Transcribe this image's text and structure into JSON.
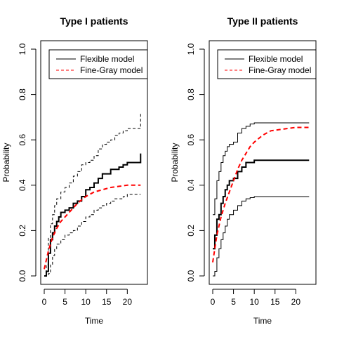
{
  "chart_data": [
    {
      "type": "line",
      "title": "Type I patients",
      "xlabel": "Time",
      "ylabel": "Probability",
      "xlim": [
        0,
        24
      ],
      "ylim": [
        0,
        1
      ],
      "xticks": [
        0,
        5,
        10,
        15,
        20
      ],
      "yticks": [
        0.0,
        0.2,
        0.4,
        0.6,
        0.8,
        1.0
      ],
      "xtick_labels": [
        "0",
        "5",
        "10",
        "15",
        "20"
      ],
      "ytick_labels": [
        "0.0",
        "0.2",
        "0.4",
        "0.6",
        "0.8",
        "1.0"
      ],
      "legend": {
        "position": "top",
        "entries": [
          {
            "label": "Flexible model",
            "color": "#000000",
            "style": "solid"
          },
          {
            "label": "Fine-Gray model",
            "color": "#ff0000",
            "style": "dashed"
          }
        ]
      },
      "series": [
        {
          "key": "flexible",
          "color": "#000000",
          "style": "step",
          "dash": "solid",
          "width": 2,
          "points": [
            [
              0,
              0
            ],
            [
              0.5,
              0.02
            ],
            [
              1,
              0.1
            ],
            [
              1.5,
              0.16
            ],
            [
              2,
              0.19
            ],
            [
              2.5,
              0.22
            ],
            [
              3,
              0.24
            ],
            [
              3.5,
              0.26
            ],
            [
              4,
              0.28
            ],
            [
              5,
              0.29
            ],
            [
              6,
              0.3
            ],
            [
              7,
              0.32
            ],
            [
              8,
              0.33
            ],
            [
              9,
              0.35
            ],
            [
              10,
              0.38
            ],
            [
              11,
              0.39
            ],
            [
              12,
              0.41
            ],
            [
              13,
              0.43
            ],
            [
              14,
              0.45
            ],
            [
              15,
              0.45
            ],
            [
              16,
              0.47
            ],
            [
              17,
              0.47
            ],
            [
              18,
              0.48
            ],
            [
              19,
              0.49
            ],
            [
              20,
              0.5
            ],
            [
              21,
              0.5
            ],
            [
              23.2,
              0.5
            ],
            [
              23.2,
              0.54
            ]
          ]
        },
        {
          "key": "flexible-upper",
          "color": "#000000",
          "style": "step",
          "dash": "dashed",
          "width": 1,
          "points": [
            [
              0,
              0
            ],
            [
              0.5,
              0.05
            ],
            [
              1,
              0.17
            ],
            [
              1.5,
              0.23
            ],
            [
              2,
              0.27
            ],
            [
              2.5,
              0.31
            ],
            [
              3,
              0.34
            ],
            [
              4,
              0.37
            ],
            [
              5,
              0.39
            ],
            [
              6,
              0.41
            ],
            [
              7,
              0.44
            ],
            [
              8,
              0.46
            ],
            [
              9,
              0.49
            ],
            [
              10,
              0.5
            ],
            [
              11,
              0.51
            ],
            [
              12,
              0.53
            ],
            [
              13,
              0.56
            ],
            [
              14,
              0.58
            ],
            [
              15,
              0.59
            ],
            [
              16,
              0.6
            ],
            [
              17,
              0.62
            ],
            [
              18,
              0.63
            ],
            [
              19,
              0.64
            ],
            [
              20,
              0.65
            ],
            [
              21,
              0.65
            ],
            [
              23.2,
              0.65
            ],
            [
              23.2,
              0.72
            ]
          ]
        },
        {
          "key": "flexible-lower",
          "color": "#000000",
          "style": "step",
          "dash": "dashed",
          "width": 1,
          "points": [
            [
              0,
              0
            ],
            [
              1,
              0.01
            ],
            [
              1.5,
              0.05
            ],
            [
              2,
              0.09
            ],
            [
              2.5,
              0.12
            ],
            [
              3,
              0.14
            ],
            [
              4,
              0.16
            ],
            [
              5,
              0.18
            ],
            [
              6,
              0.19
            ],
            [
              7,
              0.2
            ],
            [
              8,
              0.22
            ],
            [
              9,
              0.24
            ],
            [
              10,
              0.26
            ],
            [
              11,
              0.27
            ],
            [
              12,
              0.29
            ],
            [
              13,
              0.3
            ],
            [
              14,
              0.31
            ],
            [
              15,
              0.32
            ],
            [
              16,
              0.33
            ],
            [
              17,
              0.34
            ],
            [
              18,
              0.34
            ],
            [
              19,
              0.35
            ],
            [
              20,
              0.36
            ],
            [
              21,
              0.36
            ],
            [
              23.2,
              0.36
            ]
          ]
        },
        {
          "key": "fine-gray",
          "color": "#ff0000",
          "style": "smooth",
          "dash": "dashed",
          "width": 2,
          "points": [
            [
              0,
              0.03
            ],
            [
              0.5,
              0.07
            ],
            [
              1,
              0.11
            ],
            [
              1.5,
              0.14
            ],
            [
              2,
              0.17
            ],
            [
              3,
              0.21
            ],
            [
              4,
              0.24
            ],
            [
              5,
              0.26
            ],
            [
              6,
              0.28
            ],
            [
              7,
              0.3
            ],
            [
              8,
              0.32
            ],
            [
              10,
              0.35
            ],
            [
              12,
              0.37
            ],
            [
              14,
              0.38
            ],
            [
              16,
              0.39
            ],
            [
              18,
              0.395
            ],
            [
              20,
              0.4
            ],
            [
              23.2,
              0.4
            ]
          ]
        }
      ]
    },
    {
      "type": "line",
      "title": "Type II patients",
      "xlabel": "Time",
      "ylabel": "Probability",
      "xlim": [
        0,
        24
      ],
      "ylim": [
        0,
        1
      ],
      "xticks": [
        0,
        5,
        10,
        15,
        20
      ],
      "yticks": [
        0.0,
        0.2,
        0.4,
        0.6,
        0.8,
        1.0
      ],
      "xtick_labels": [
        "0",
        "5",
        "10",
        "15",
        "20"
      ],
      "ytick_labels": [
        "0.0",
        "0.2",
        "0.4",
        "0.6",
        "0.8",
        "1.0"
      ],
      "legend": {
        "position": "top",
        "entries": [
          {
            "label": "Flexible model",
            "color": "#000000",
            "style": "solid"
          },
          {
            "label": "Fine-Gray model",
            "color": "#ff0000",
            "style": "dashed"
          }
        ]
      },
      "series": [
        {
          "key": "flexible",
          "color": "#000000",
          "style": "step",
          "dash": "solid",
          "width": 2,
          "points": [
            [
              0,
              0.12
            ],
            [
              0.5,
              0.18
            ],
            [
              1,
              0.25
            ],
            [
              1.5,
              0.27
            ],
            [
              2,
              0.32
            ],
            [
              2.5,
              0.35
            ],
            [
              3,
              0.38
            ],
            [
              3.5,
              0.4
            ],
            [
              4,
              0.42
            ],
            [
              5,
              0.43
            ],
            [
              6,
              0.46
            ],
            [
              7,
              0.48
            ],
            [
              8,
              0.5
            ],
            [
              9,
              0.5
            ],
            [
              10,
              0.51
            ],
            [
              11,
              0.51
            ],
            [
              23.2,
              0.51
            ]
          ]
        },
        {
          "key": "flexible-upper",
          "color": "#000000",
          "style": "step",
          "dash": "solid",
          "width": 1,
          "points": [
            [
              0,
              0.27
            ],
            [
              0.5,
              0.34
            ],
            [
              1,
              0.42
            ],
            [
              1.5,
              0.46
            ],
            [
              2,
              0.5
            ],
            [
              2.5,
              0.53
            ],
            [
              3,
              0.55
            ],
            [
              3.5,
              0.57
            ],
            [
              4,
              0.58
            ],
            [
              5,
              0.59
            ],
            [
              6,
              0.63
            ],
            [
              7,
              0.65
            ],
            [
              8,
              0.66
            ],
            [
              9,
              0.67
            ],
            [
              10,
              0.675
            ],
            [
              11,
              0.675
            ],
            [
              23.2,
              0.675
            ]
          ]
        },
        {
          "key": "flexible-lower",
          "color": "#000000",
          "style": "step",
          "dash": "solid",
          "width": 1,
          "points": [
            [
              0,
              0
            ],
            [
              0.5,
              0.02
            ],
            [
              1,
              0.08
            ],
            [
              1.5,
              0.12
            ],
            [
              2,
              0.16
            ],
            [
              2.5,
              0.19
            ],
            [
              3,
              0.22
            ],
            [
              3.5,
              0.25
            ],
            [
              4,
              0.27
            ],
            [
              5,
              0.29
            ],
            [
              6,
              0.31
            ],
            [
              7,
              0.33
            ],
            [
              8,
              0.34
            ],
            [
              9,
              0.345
            ],
            [
              10,
              0.35
            ],
            [
              23.2,
              0.35
            ]
          ]
        },
        {
          "key": "fine-gray",
          "color": "#ff0000",
          "style": "smooth",
          "dash": "dashed",
          "width": 2,
          "points": [
            [
              0,
              0.06
            ],
            [
              0.5,
              0.12
            ],
            [
              1,
              0.18
            ],
            [
              1.5,
              0.22
            ],
            [
              2,
              0.26
            ],
            [
              3,
              0.32
            ],
            [
              4,
              0.37
            ],
            [
              5,
              0.42
            ],
            [
              6,
              0.47
            ],
            [
              7,
              0.51
            ],
            [
              8,
              0.54
            ],
            [
              9,
              0.57
            ],
            [
              10,
              0.59
            ],
            [
              12,
              0.62
            ],
            [
              14,
              0.64
            ],
            [
              16,
              0.645
            ],
            [
              18,
              0.65
            ],
            [
              20,
              0.655
            ],
            [
              23.2,
              0.655
            ]
          ]
        }
      ]
    }
  ]
}
